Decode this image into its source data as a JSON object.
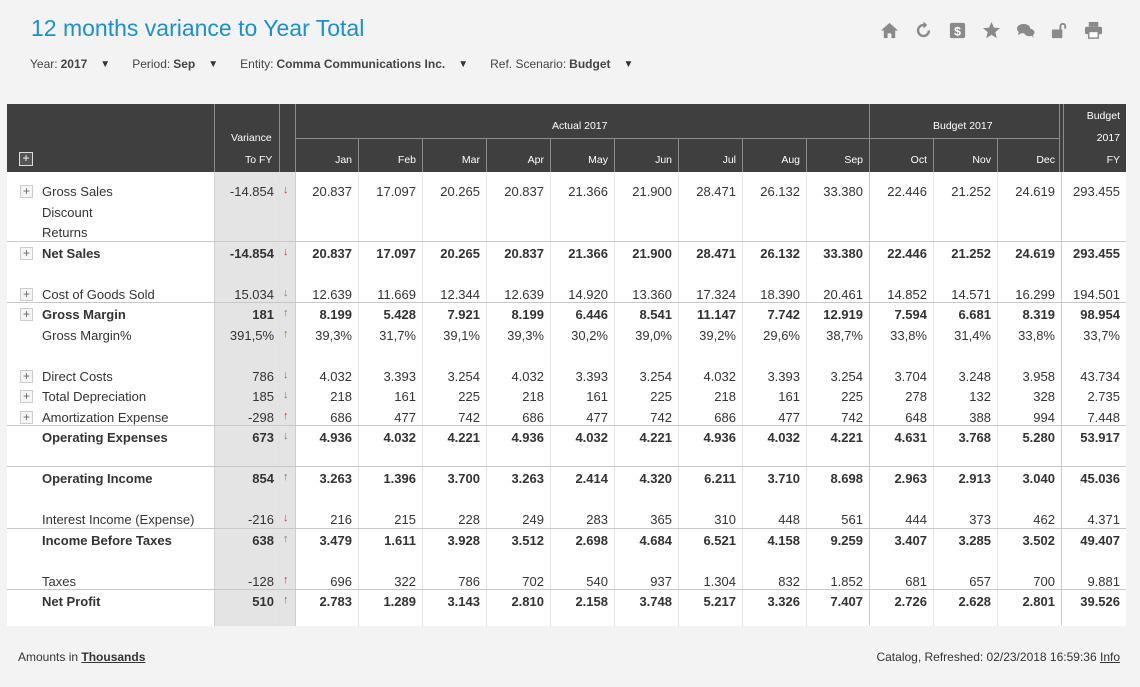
{
  "title": "12 months variance to Year Total",
  "toolbar": [
    {
      "icon": "home-icon"
    },
    {
      "icon": "refresh-icon"
    },
    {
      "icon": "dollar-icon"
    },
    {
      "icon": "star-icon"
    },
    {
      "icon": "comments-icon"
    },
    {
      "icon": "unlock-icon"
    },
    {
      "icon": "print-icon"
    }
  ],
  "filters": [
    {
      "label": "Year:",
      "value": "2017"
    },
    {
      "label": "Period:",
      "value": "Sep"
    },
    {
      "label": "Entity:",
      "value": "Comma Communications Inc."
    },
    {
      "label": "Ref. Scenario:",
      "value": "Budget"
    }
  ],
  "header": {
    "variance": [
      "Variance",
      "To FY"
    ],
    "actual_group": "Actual 2017",
    "budget_group": "Budget 2017",
    "fy_group": [
      "Budget",
      "2017",
      "FY"
    ],
    "months": [
      "Jan",
      "Feb",
      "Mar",
      "Apr",
      "May",
      "Jun",
      "Jul",
      "Aug",
      "Sep",
      "Oct",
      "Nov",
      "Dec"
    ]
  },
  "rows": [
    {
      "label": "Gross Sales",
      "expand": true,
      "bold": false,
      "variance": "-14.854",
      "arrow": "down-red",
      "values": [
        "20.837",
        "17.097",
        "20.265",
        "20.837",
        "21.366",
        "21.900",
        "28.471",
        "26.132",
        "33.380",
        "22.446",
        "21.252",
        "24.619"
      ],
      "fy": "293.455"
    },
    {
      "label": "Discount",
      "expand": false,
      "bold": false,
      "variance": "",
      "arrow": "",
      "values": [
        "",
        "",
        "",
        "",
        "",
        "",
        "",
        "",
        "",
        "",
        "",
        ""
      ],
      "fy": ""
    },
    {
      "label": "Returns",
      "expand": false,
      "bold": false,
      "variance": "",
      "arrow": "",
      "values": [
        "",
        "",
        "",
        "",
        "",
        "",
        "",
        "",
        "",
        "",
        "",
        ""
      ],
      "fy": ""
    },
    {
      "label": "Net Sales",
      "expand": true,
      "bold": true,
      "variance": "-14.854",
      "arrow": "down-red",
      "values": [
        "20.837",
        "17.097",
        "20.265",
        "20.837",
        "21.366",
        "21.900",
        "28.471",
        "26.132",
        "33.380",
        "22.446",
        "21.252",
        "24.619"
      ],
      "fy": "293.455"
    },
    {
      "label": "",
      "spacer": true
    },
    {
      "label": "Cost of Goods Sold",
      "expand": true,
      "bold": false,
      "variance": "15.034",
      "arrow": "down-green",
      "values": [
        "12.639",
        "11.669",
        "12.344",
        "12.639",
        "14.920",
        "13.360",
        "17.324",
        "18.390",
        "20.461",
        "14.852",
        "14.571",
        "16.299"
      ],
      "fy": "194.501"
    },
    {
      "label": "Gross Margin",
      "expand": true,
      "bold": true,
      "variance": "181",
      "arrow": "up",
      "values": [
        "8.199",
        "5.428",
        "7.921",
        "8.199",
        "6.446",
        "8.541",
        "11.147",
        "7.742",
        "12.919",
        "7.594",
        "6.681",
        "8.319"
      ],
      "fy": "98.954"
    },
    {
      "label": "Gross Margin%",
      "expand": false,
      "bold": false,
      "variance": "391,5%",
      "arrow": "up",
      "values": [
        "39,3%",
        "31,7%",
        "39,1%",
        "39,3%",
        "30,2%",
        "39,0%",
        "39,2%",
        "29,6%",
        "38,7%",
        "33,8%",
        "31,4%",
        "33,8%"
      ],
      "fy": "33,7%"
    },
    {
      "label": "",
      "spacer": true
    },
    {
      "label": "Direct Costs",
      "expand": true,
      "bold": false,
      "variance": "786",
      "arrow": "down-green",
      "values": [
        "4.032",
        "3.393",
        "3.254",
        "4.032",
        "3.393",
        "3.254",
        "4.032",
        "3.393",
        "3.254",
        "3.704",
        "3.248",
        "3.958"
      ],
      "fy": "43.734"
    },
    {
      "label": "Total Depreciation",
      "expand": true,
      "bold": false,
      "variance": "185",
      "arrow": "down-green",
      "values": [
        "218",
        "161",
        "225",
        "218",
        "161",
        "225",
        "218",
        "161",
        "225",
        "278",
        "132",
        "328"
      ],
      "fy": "2.735"
    },
    {
      "label": "Amortization Expense",
      "expand": true,
      "bold": false,
      "variance": "-298",
      "arrow": "up-red",
      "values": [
        "686",
        "477",
        "742",
        "686",
        "477",
        "742",
        "686",
        "477",
        "742",
        "648",
        "388",
        "994"
      ],
      "fy": "7.448"
    },
    {
      "label": "Operating Expenses",
      "expand": false,
      "bold": true,
      "variance": "673",
      "arrow": "down-green",
      "values": [
        "4.936",
        "4.032",
        "4.221",
        "4.936",
        "4.032",
        "4.221",
        "4.936",
        "4.032",
        "4.221",
        "4.631",
        "3.768",
        "5.280"
      ],
      "fy": "53.917"
    },
    {
      "label": "",
      "spacer": true
    },
    {
      "label": "Operating Income",
      "expand": false,
      "bold": true,
      "variance": "854",
      "arrow": "up",
      "values": [
        "3.263",
        "1.396",
        "3.700",
        "3.263",
        "2.414",
        "4.320",
        "6.211",
        "3.710",
        "8.698",
        "2.963",
        "2.913",
        "3.040"
      ],
      "fy": "45.036"
    },
    {
      "label": "",
      "spacer": true
    },
    {
      "label": "Interest Income (Expense)",
      "expand": false,
      "bold": false,
      "variance": "-216",
      "arrow": "down-red",
      "values": [
        "216",
        "215",
        "228",
        "249",
        "283",
        "365",
        "310",
        "448",
        "561",
        "444",
        "373",
        "462"
      ],
      "fy": "4.371"
    },
    {
      "label": "Income Before Taxes",
      "expand": false,
      "bold": true,
      "variance": "638",
      "arrow": "up",
      "values": [
        "3.479",
        "1.611",
        "3.928",
        "3.512",
        "2.698",
        "4.684",
        "6.521",
        "4.158",
        "9.259",
        "3.407",
        "3.285",
        "3.502"
      ],
      "fy": "49.407"
    },
    {
      "label": "",
      "spacer": true
    },
    {
      "label": "Taxes",
      "expand": false,
      "bold": false,
      "variance": "-128",
      "arrow": "up-red",
      "values": [
        "696",
        "322",
        "786",
        "702",
        "540",
        "937",
        "1.304",
        "832",
        "1.852",
        "681",
        "657",
        "700"
      ],
      "fy": "9.881"
    },
    {
      "label": "Net Profit",
      "expand": false,
      "bold": true,
      "variance": "510",
      "arrow": "up",
      "values": [
        "2.783",
        "1.289",
        "3.143",
        "2.810",
        "2.158",
        "3.748",
        "5.217",
        "3.326",
        "7.407",
        "2.726",
        "2.628",
        "2.801"
      ],
      "fy": "39.526"
    }
  ],
  "footer": {
    "amounts_prefix": "Amounts in",
    "amounts_unit": "Thousands",
    "refresh_text": "Catalog, Refreshed: 02/23/2018 16:59:36",
    "info_link": "Info"
  }
}
